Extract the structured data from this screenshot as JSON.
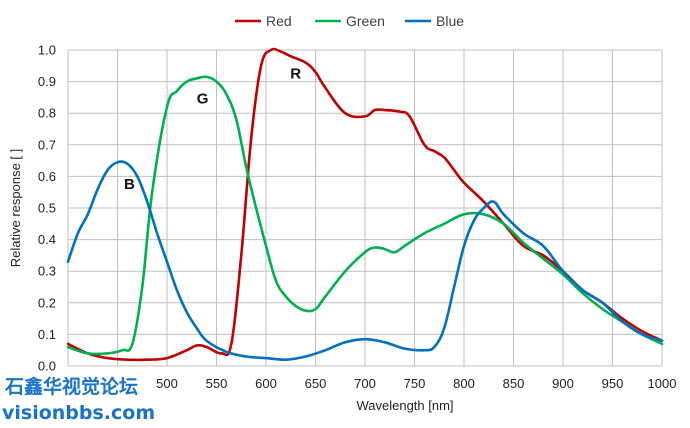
{
  "chart_data": {
    "type": "line",
    "xlabel": "Wavelength [nm]",
    "ylabel": "Relative response [ ]",
    "xlim": [
      400,
      1000
    ],
    "ylim": [
      0,
      1.0
    ],
    "xticks": [
      400,
      450,
      500,
      550,
      600,
      650,
      700,
      750,
      800,
      850,
      900,
      950,
      1000
    ],
    "yticks": [
      0.0,
      0.1,
      0.2,
      0.3,
      0.4,
      0.5,
      0.6,
      0.7,
      0.8,
      0.9,
      1.0
    ],
    "xtick_labels": [
      "",
      "",
      "500",
      "550",
      "600",
      "650",
      "700",
      "750",
      "800",
      "850",
      "900",
      "950",
      "1000"
    ],
    "ytick_labels": [
      "0.0",
      "0.1",
      "0.2",
      "0.3",
      "0.4",
      "0.5",
      "0.6",
      "0.7",
      "0.8",
      "0.9",
      "1.0"
    ],
    "grid": true,
    "legend_position": "top-center",
    "series": [
      {
        "name": "Red",
        "color": "#c00000",
        "x": [
          400,
          420,
          440,
          460,
          480,
          500,
          520,
          530,
          540,
          555,
          565,
          575,
          585,
          595,
          605,
          615,
          625,
          640,
          650,
          660,
          680,
          700,
          710,
          720,
          735,
          745,
          760,
          770,
          780,
          790,
          800,
          820,
          840,
          860,
          880,
          900,
          920,
          940,
          960,
          980,
          1000
        ],
        "y": [
          0.07,
          0.04,
          0.025,
          0.02,
          0.02,
          0.025,
          0.05,
          0.065,
          0.06,
          0.04,
          0.07,
          0.35,
          0.72,
          0.95,
          1.0,
          0.995,
          0.98,
          0.96,
          0.93,
          0.88,
          0.8,
          0.79,
          0.81,
          0.81,
          0.805,
          0.79,
          0.7,
          0.68,
          0.66,
          0.62,
          0.58,
          0.52,
          0.45,
          0.38,
          0.35,
          0.3,
          0.24,
          0.2,
          0.15,
          0.11,
          0.08
        ]
      },
      {
        "name": "Green",
        "color": "#00b050",
        "x": [
          400,
          420,
          440,
          455,
          465,
          475,
          485,
          500,
          510,
          520,
          530,
          540,
          550,
          560,
          570,
          580,
          590,
          600,
          610,
          620,
          630,
          640,
          650,
          660,
          680,
          700,
          710,
          720,
          730,
          740,
          760,
          780,
          800,
          820,
          840,
          860,
          880,
          900,
          920,
          940,
          960,
          980,
          1000
        ],
        "y": [
          0.06,
          0.04,
          0.04,
          0.05,
          0.07,
          0.25,
          0.55,
          0.82,
          0.87,
          0.9,
          0.91,
          0.915,
          0.9,
          0.86,
          0.78,
          0.63,
          0.5,
          0.38,
          0.27,
          0.22,
          0.19,
          0.175,
          0.18,
          0.22,
          0.3,
          0.36,
          0.375,
          0.37,
          0.36,
          0.38,
          0.42,
          0.45,
          0.48,
          0.48,
          0.45,
          0.39,
          0.34,
          0.29,
          0.23,
          0.18,
          0.14,
          0.1,
          0.07
        ]
      },
      {
        "name": "Blue",
        "color": "#0070c0",
        "x": [
          400,
          410,
          420,
          430,
          440,
          450,
          460,
          470,
          480,
          490,
          500,
          510,
          520,
          530,
          540,
          560,
          580,
          600,
          620,
          640,
          660,
          680,
          700,
          720,
          740,
          760,
          770,
          780,
          790,
          800,
          810,
          820,
          830,
          840,
          860,
          880,
          900,
          920,
          940,
          960,
          980,
          1000
        ],
        "y": [
          0.33,
          0.42,
          0.48,
          0.56,
          0.62,
          0.645,
          0.64,
          0.6,
          0.52,
          0.42,
          0.33,
          0.24,
          0.17,
          0.12,
          0.08,
          0.045,
          0.03,
          0.025,
          0.02,
          0.03,
          0.05,
          0.075,
          0.085,
          0.075,
          0.055,
          0.05,
          0.06,
          0.12,
          0.25,
          0.38,
          0.46,
          0.5,
          0.52,
          0.48,
          0.42,
          0.38,
          0.3,
          0.24,
          0.2,
          0.14,
          0.1,
          0.08
        ]
      }
    ],
    "annotations": [
      {
        "text": "R",
        "x": 630,
        "y": 0.91
      },
      {
        "text": "G",
        "x": 536,
        "y": 0.83
      },
      {
        "text": "B",
        "x": 462,
        "y": 0.56
      }
    ]
  },
  "watermark": {
    "line1": "石鑫华视觉论坛",
    "line2": "visionbbs.com",
    "color": "#1a73c9"
  }
}
